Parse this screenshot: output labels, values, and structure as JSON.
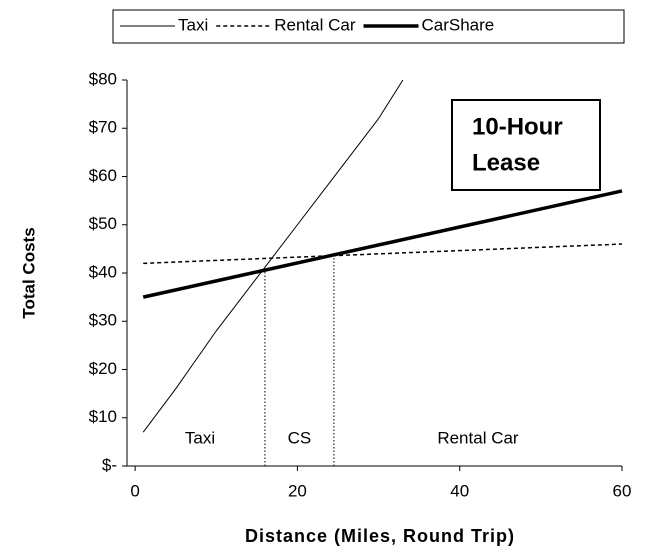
{
  "chart_data": {
    "type": "line",
    "y_label": "Total Costs",
    "x_label": "Distance (Miles, Round Trip)",
    "xlim": [
      -1,
      60
    ],
    "xticks": [
      0,
      20,
      40,
      60
    ],
    "ylim": [
      0,
      80
    ],
    "yticks": [
      {
        "value": 0,
        "label": "$-"
      },
      {
        "value": 10,
        "label": "$10"
      },
      {
        "value": 20,
        "label": "$20"
      },
      {
        "value": 30,
        "label": "$30"
      },
      {
        "value": 40,
        "label": "$40"
      },
      {
        "value": 50,
        "label": "$50"
      },
      {
        "value": 60,
        "label": "$60"
      },
      {
        "value": 70,
        "label": "$70"
      },
      {
        "value": 80,
        "label": "$80"
      }
    ],
    "series": [
      {
        "name": "Taxi",
        "color": "#000000",
        "style": "thin",
        "x": [
          1,
          5,
          10,
          15,
          20,
          25,
          30,
          33
        ],
        "values": [
          7,
          16,
          28,
          39,
          50,
          61,
          72,
          80
        ]
      },
      {
        "name": "Rental Car",
        "color": "#000000",
        "style": "dashed",
        "x": [
          1,
          60
        ],
        "values": [
          42,
          46
        ]
      },
      {
        "name": "CarShare",
        "color": "#000000",
        "style": "thick",
        "x": [
          1,
          60
        ],
        "values": [
          35,
          57
        ]
      }
    ],
    "breakpoints": [
      {
        "x": 16,
        "y": 41
      },
      {
        "x": 24.5,
        "y": 43.5
      }
    ],
    "regions": [
      "Taxi",
      "CS",
      "Rental Car"
    ],
    "box_text": [
      "10-Hour",
      "Lease"
    ]
  }
}
